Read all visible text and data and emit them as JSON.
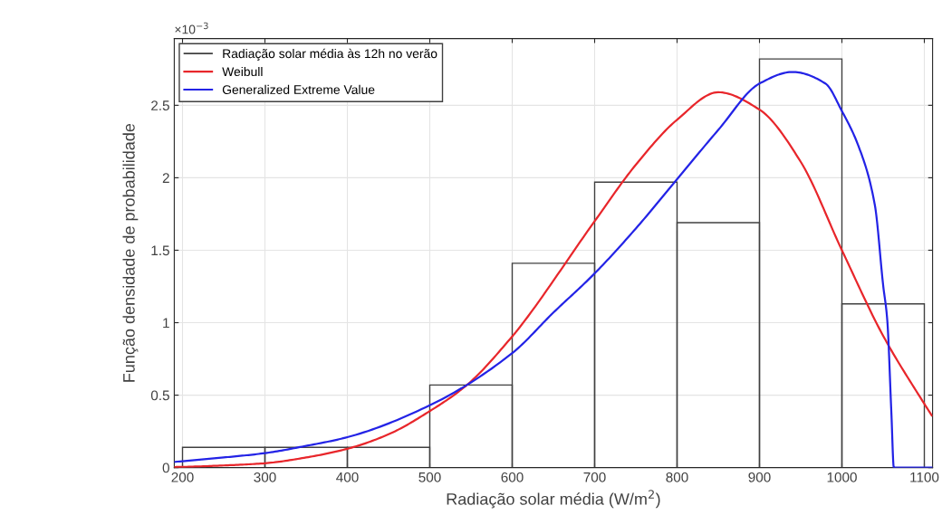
{
  "chart_data": {
    "type": "histogram",
    "xlabel": "Radiação solar média (W/m$^{2}$)",
    "ylabel": "Função densidade de probabilidade",
    "annotations": [
      "×10$^{−3}$"
    ],
    "xlim": [
      190,
      1110
    ],
    "ylim": [
      0,
      2.96
    ],
    "xticks": [
      200,
      300,
      400,
      500,
      600,
      700,
      800,
      900,
      1000,
      1100
    ],
    "yticks": [
      0,
      0.5,
      1,
      1.5,
      2,
      2.5
    ],
    "grid": true,
    "legend": "top left",
    "series": [
      {
        "name": "Radiação solar média às 12h no verão",
        "color": "#404040",
        "bins": [
          200,
          300,
          400,
          500,
          600,
          700,
          800,
          900,
          1000,
          1100
        ],
        "values": [
          0.14,
          0.14,
          0.14,
          0.57,
          1.41,
          1.97,
          1.69,
          2.82,
          1.13
        ]
      },
      {
        "type": "line",
        "name": "Weibull",
        "color": "#e8262b",
        "x": [
          190,
          200,
          250,
          300,
          350,
          400,
          450,
          500,
          545,
          600,
          610,
          700,
          750,
          800,
          850,
          900,
          950,
          1000,
          1050,
          1100,
          1109
        ],
        "values": [
          0.004,
          0.005,
          0.015,
          0.03,
          0.07,
          0.13,
          0.23,
          0.39,
          0.57,
          0.905,
          0.975,
          1.7,
          2.09,
          2.4,
          2.59,
          2.47,
          2.11,
          1.5,
          0.91,
          0.44,
          0.36
        ]
      },
      {
        "type": "line",
        "name": "Generalized Extreme Value",
        "color": "#2323e6",
        "x": [
          191,
          250,
          300,
          350,
          400,
          500,
          600,
          650,
          700,
          750,
          800,
          850,
          900,
          940,
          980,
          1000,
          1020,
          1040,
          1050,
          1055,
          1060,
          1063,
          1109
        ],
        "values": [
          0.04,
          0.07,
          0.1,
          0.15,
          0.21,
          0.43,
          0.79,
          1.07,
          1.34,
          1.65,
          1.99,
          2.33,
          2.65,
          2.73,
          2.65,
          2.46,
          2.22,
          1.81,
          1.26,
          1.02,
          0.38,
          0,
          0
        ]
      }
    ]
  }
}
